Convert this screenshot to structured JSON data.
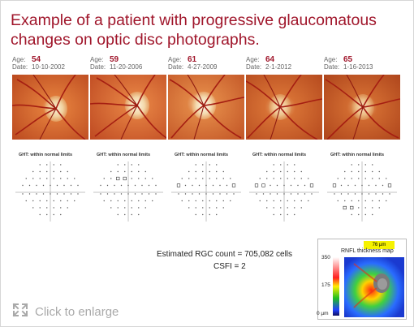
{
  "title": "Example of a patient with progressive glaucomatous changes on optic disc photographs.",
  "panels": [
    {
      "age_label": "Age:",
      "age": "54",
      "date_label": "Date:",
      "date": "10-10-2002",
      "ght": "GHT: within normal limits"
    },
    {
      "age_label": "Age:",
      "age": "59",
      "date_label": "Date:",
      "date": "11-20-2006",
      "ght": "GHT: within normal limits"
    },
    {
      "age_label": "Age:",
      "age": "61",
      "date_label": "Date:",
      "date": "4-27-2009",
      "ght": "GHT: within normal limits"
    },
    {
      "age_label": "Age:",
      "age": "64",
      "date_label": "Date:",
      "date": "2-1-2012",
      "ght": "GHT: within normal limits"
    },
    {
      "age_label": "Age:",
      "age": "65",
      "date_label": "Date:",
      "date": "1-16-2013",
      "ght": "GHT: within normal limits"
    }
  ],
  "stats": {
    "rgc": "Estimated RGC count = 705,082 cells",
    "csfi": "CSFI = 2"
  },
  "rnfl": {
    "badge": "76 µm",
    "title": "RNFL thickness map",
    "scale_top": "350",
    "scale_mid": "175",
    "scale_bottom": "0 µm"
  },
  "enlarge": {
    "icon": "expand-arrows-icon",
    "label": "Click to enlarge"
  },
  "colors": {
    "title": "#a0162b",
    "fundus_base": "#d0652a",
    "disc": "#f4d9a0"
  }
}
